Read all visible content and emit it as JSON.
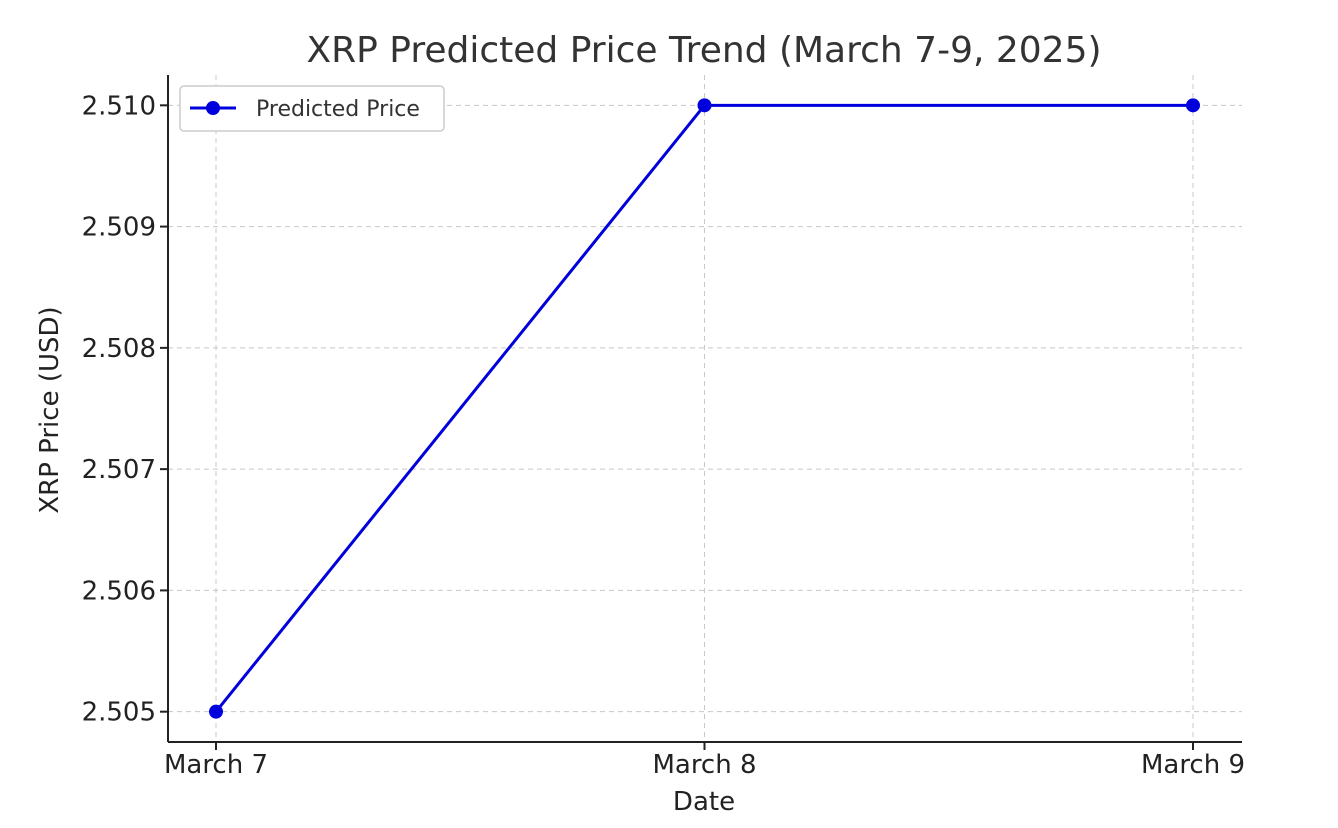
{
  "chart_data": {
    "type": "line",
    "title": "XRP Predicted Price Trend (March 7-9, 2025)",
    "xlabel": "Date",
    "ylabel": "XRP Price (USD)",
    "categories": [
      "March 7",
      "March 8",
      "March 9"
    ],
    "series": [
      {
        "name": "Predicted Price",
        "color": "#0000dd",
        "marker": "circle",
        "values": [
          2.505,
          2.51,
          2.51
        ]
      }
    ],
    "yticks": [
      "2.505",
      "2.506",
      "2.507",
      "2.508",
      "2.509",
      "2.510"
    ],
    "ytick_values": [
      2.505,
      2.506,
      2.507,
      2.508,
      2.509,
      2.51
    ],
    "ylim": [
      2.50475,
      2.51025
    ],
    "grid": true,
    "legend": "top-left"
  }
}
